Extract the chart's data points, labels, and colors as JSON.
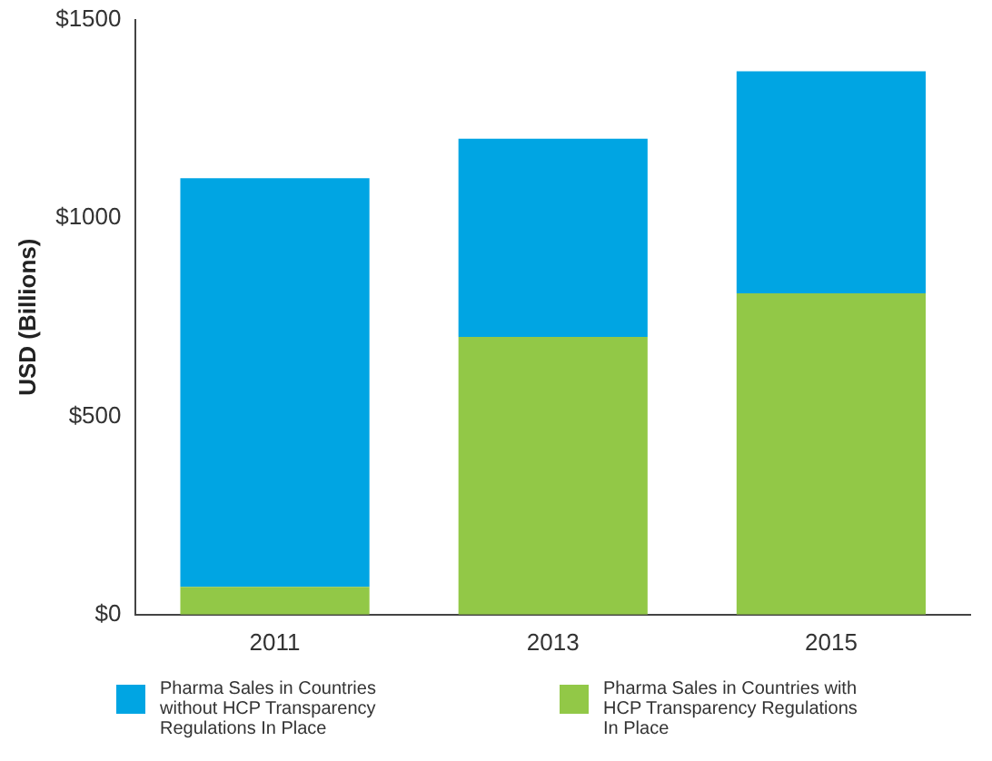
{
  "chart_data": {
    "type": "bar",
    "ylabel": "USD (Billions)",
    "categories": [
      "2011",
      "2013",
      "2015"
    ],
    "stacked": true,
    "series": [
      {
        "name": "Pharma Sales in Countries with HCP Transparency Regulations In Place",
        "color": "#92c847",
        "values": [
          70,
          700,
          810
        ]
      },
      {
        "name": "Pharma Sales in Countries without HCP Transparency Regulations In Place",
        "color": "#00a5e3",
        "values": [
          1030,
          500,
          560
        ]
      }
    ],
    "ylim": [
      0,
      1500
    ],
    "yticks": [
      {
        "value": 0,
        "label": "$0"
      },
      {
        "value": 500,
        "label": "$500"
      },
      {
        "value": 1000,
        "label": "$1000"
      },
      {
        "value": 1500,
        "label": "$1500"
      }
    ],
    "grid": false,
    "legend": "bottom"
  }
}
